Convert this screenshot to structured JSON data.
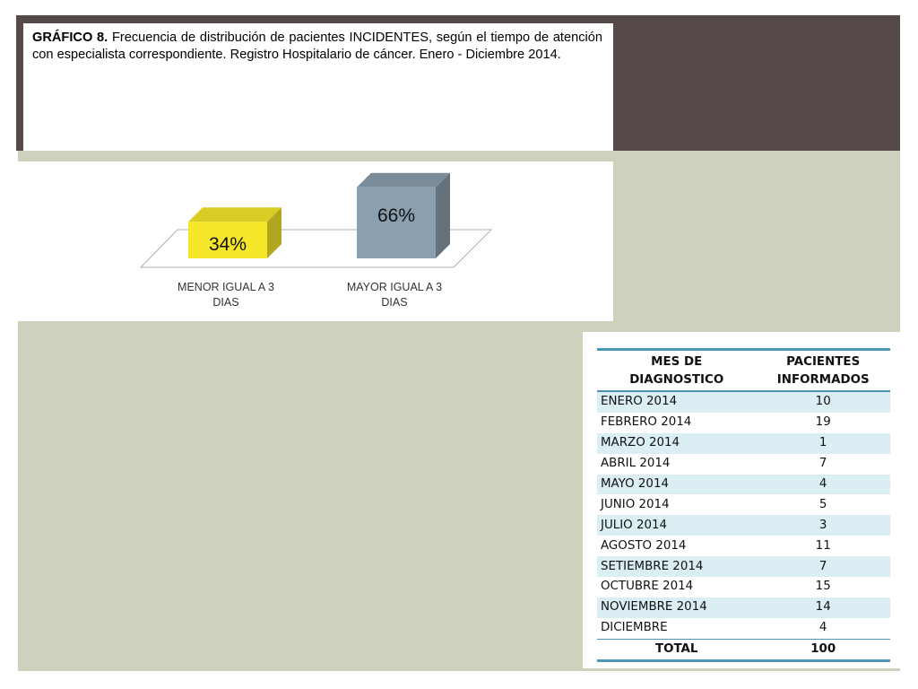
{
  "caption": {
    "label": "GRÁFICO 8.",
    "text": "Frecuencia de distribución de pacientes INCIDENTES, según el tiempo de atención con especialista correspondiente. Registro Hospitalario de cáncer. Enero - Diciembre 2014."
  },
  "chart_data": {
    "type": "bar",
    "categories": [
      "MENOR IGUAL A 3 DIAS",
      "MAYOR IGUAL A 3 DIAS"
    ],
    "category_lines": [
      [
        "MENOR IGUAL A 3",
        "DIAS"
      ],
      [
        "MAYOR IGUAL A 3",
        "DIAS"
      ]
    ],
    "values": [
      34,
      66
    ],
    "data_labels": [
      "34%",
      "66%"
    ],
    "colors": [
      "#f5e82a",
      "#8b9fae"
    ],
    "unit": "%",
    "ylim": [
      0,
      100
    ],
    "grid": false,
    "legend": "none",
    "style": "3d"
  },
  "table": {
    "headers": [
      [
        "MES DE",
        "DIAGNOSTICO"
      ],
      [
        "PACIENTES",
        "INFORMADOS"
      ]
    ],
    "rows": [
      [
        "ENERO 2014",
        "10"
      ],
      [
        "FEBRERO 2014",
        "19"
      ],
      [
        "MARZO 2014",
        "1"
      ],
      [
        "ABRIL 2014",
        "7"
      ],
      [
        "MAYO 2014",
        "4"
      ],
      [
        "JUNIO 2014",
        "5"
      ],
      [
        "JULIO 2014",
        "3"
      ],
      [
        "AGOSTO 2014",
        "11"
      ],
      [
        "SETIEMBRE 2014",
        "7"
      ],
      [
        "OCTUBRE 2014",
        "15"
      ],
      [
        "NOVIEMBRE 2014",
        "14"
      ],
      [
        "DICIEMBRE",
        "4"
      ]
    ],
    "total_label": "TOTAL",
    "total_value": "100",
    "accent_color": "#4e96b8",
    "stripe_color": "#dbeef4"
  }
}
